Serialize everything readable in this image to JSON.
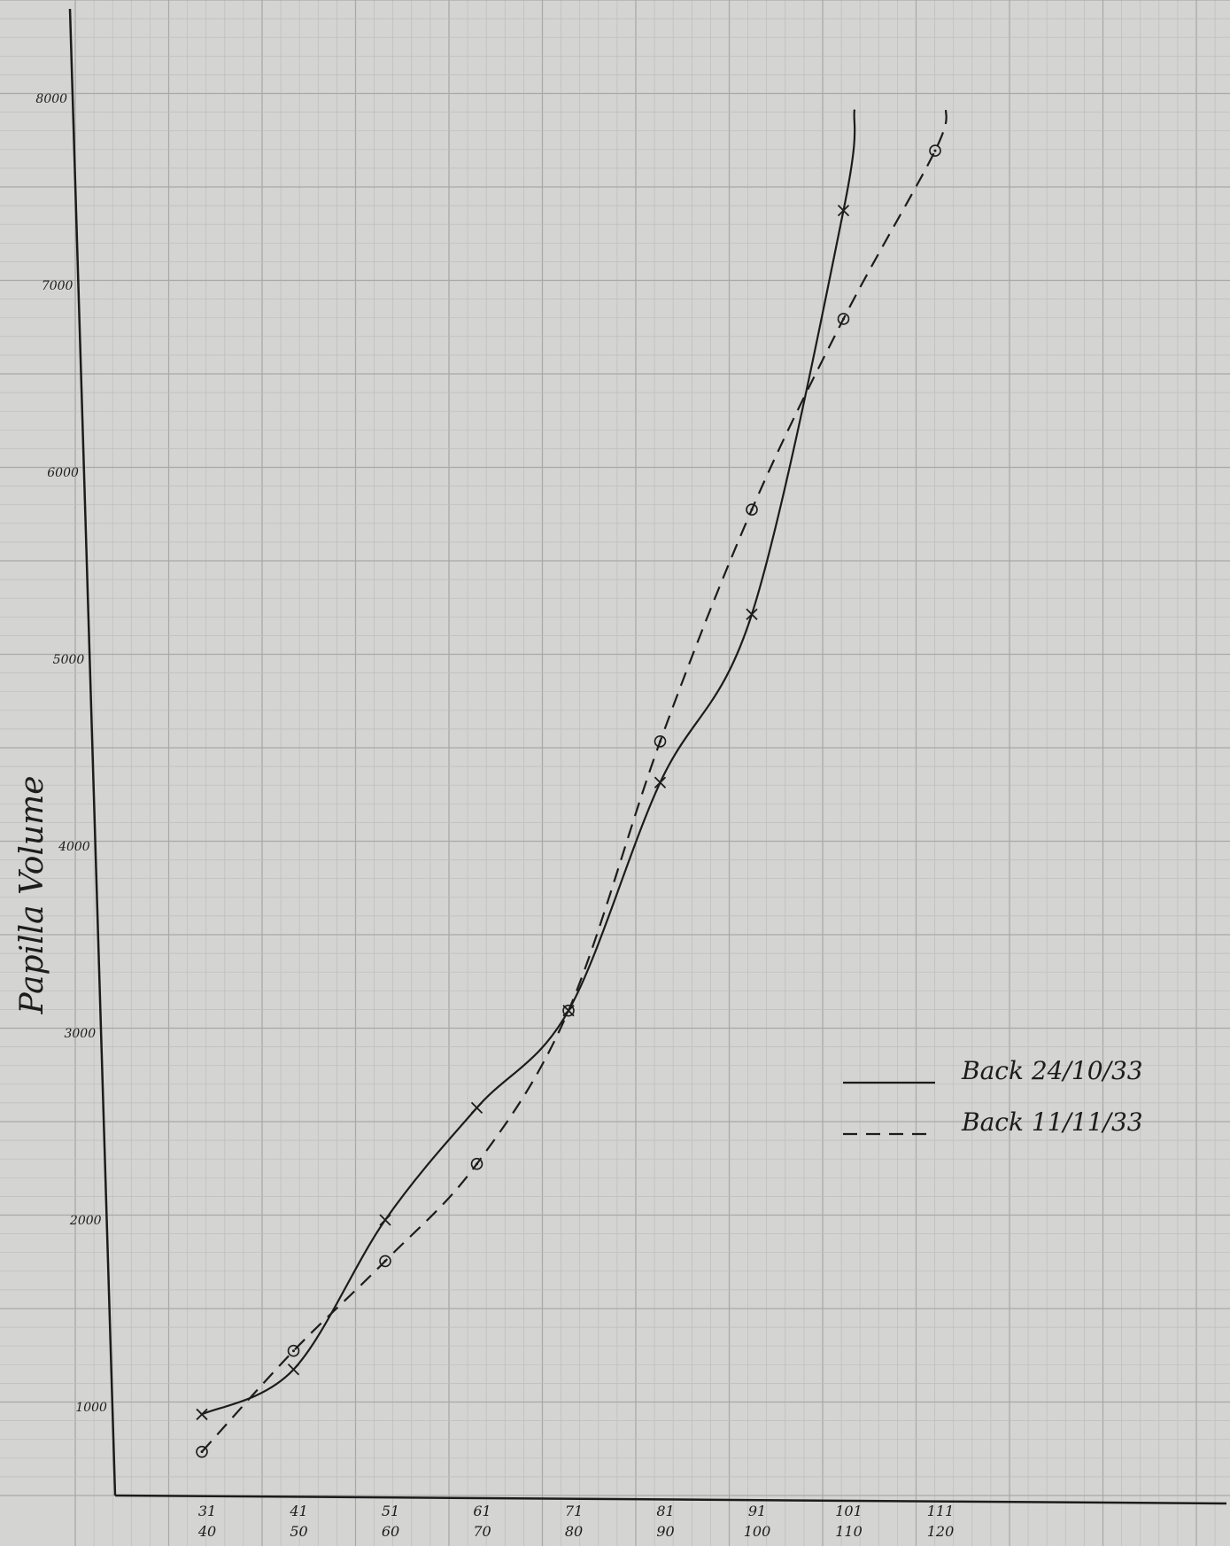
{
  "chart_data": {
    "type": "line",
    "title": "",
    "xlabel": "",
    "ylabel": "Papilla Volume",
    "y_ticks": [
      {
        "value": 1000,
        "label": "1000"
      },
      {
        "value": 2000,
        "label": "2000"
      },
      {
        "value": 3000,
        "label": "3000"
      },
      {
        "value": 4000,
        "label": "4000"
      },
      {
        "value": 5000,
        "label": "5000"
      },
      {
        "value": 6000,
        "label": "6000"
      },
      {
        "value": 7000,
        "label": "7000"
      },
      {
        "value": 8000,
        "label": "8000"
      }
    ],
    "categories": [
      "31-40",
      "41-50",
      "51-60",
      "61-70",
      "71-80",
      "81-90",
      "91-100",
      "101-110",
      "111-120"
    ],
    "x_tick_labels": [
      {
        "top": "31",
        "bottom": "40"
      },
      {
        "top": "41",
        "bottom": "50"
      },
      {
        "top": "51",
        "bottom": "60"
      },
      {
        "top": "61",
        "bottom": "70"
      },
      {
        "top": "71",
        "bottom": "80"
      },
      {
        "top": "81",
        "bottom": "90"
      },
      {
        "top": "91",
        "bottom": "100"
      },
      {
        "top": "101",
        "bottom": "110"
      },
      {
        "top": "111",
        "bottom": "120"
      }
    ],
    "ylim": [
      500,
      8500
    ],
    "grid": true,
    "legend_position": "right",
    "series": [
      {
        "name": "Back 24/10/33",
        "line_style": "solid",
        "marker": "x",
        "values": [
          960,
          1200,
          2000,
          2600,
          3120,
          4340,
          5240,
          7400,
          null
        ]
      },
      {
        "name": "Back 11/11/33",
        "line_style": "dashed",
        "marker": "circle-dot",
        "values": [
          760,
          1300,
          1780,
          2300,
          3120,
          4560,
          5800,
          6820,
          7720
        ]
      }
    ]
  },
  "colors": {
    "paper": "#d4d4d2",
    "grid_minor": "#bdbdbb",
    "grid_major": "#a9a9a7",
    "ink": "#1c1c1c"
  }
}
